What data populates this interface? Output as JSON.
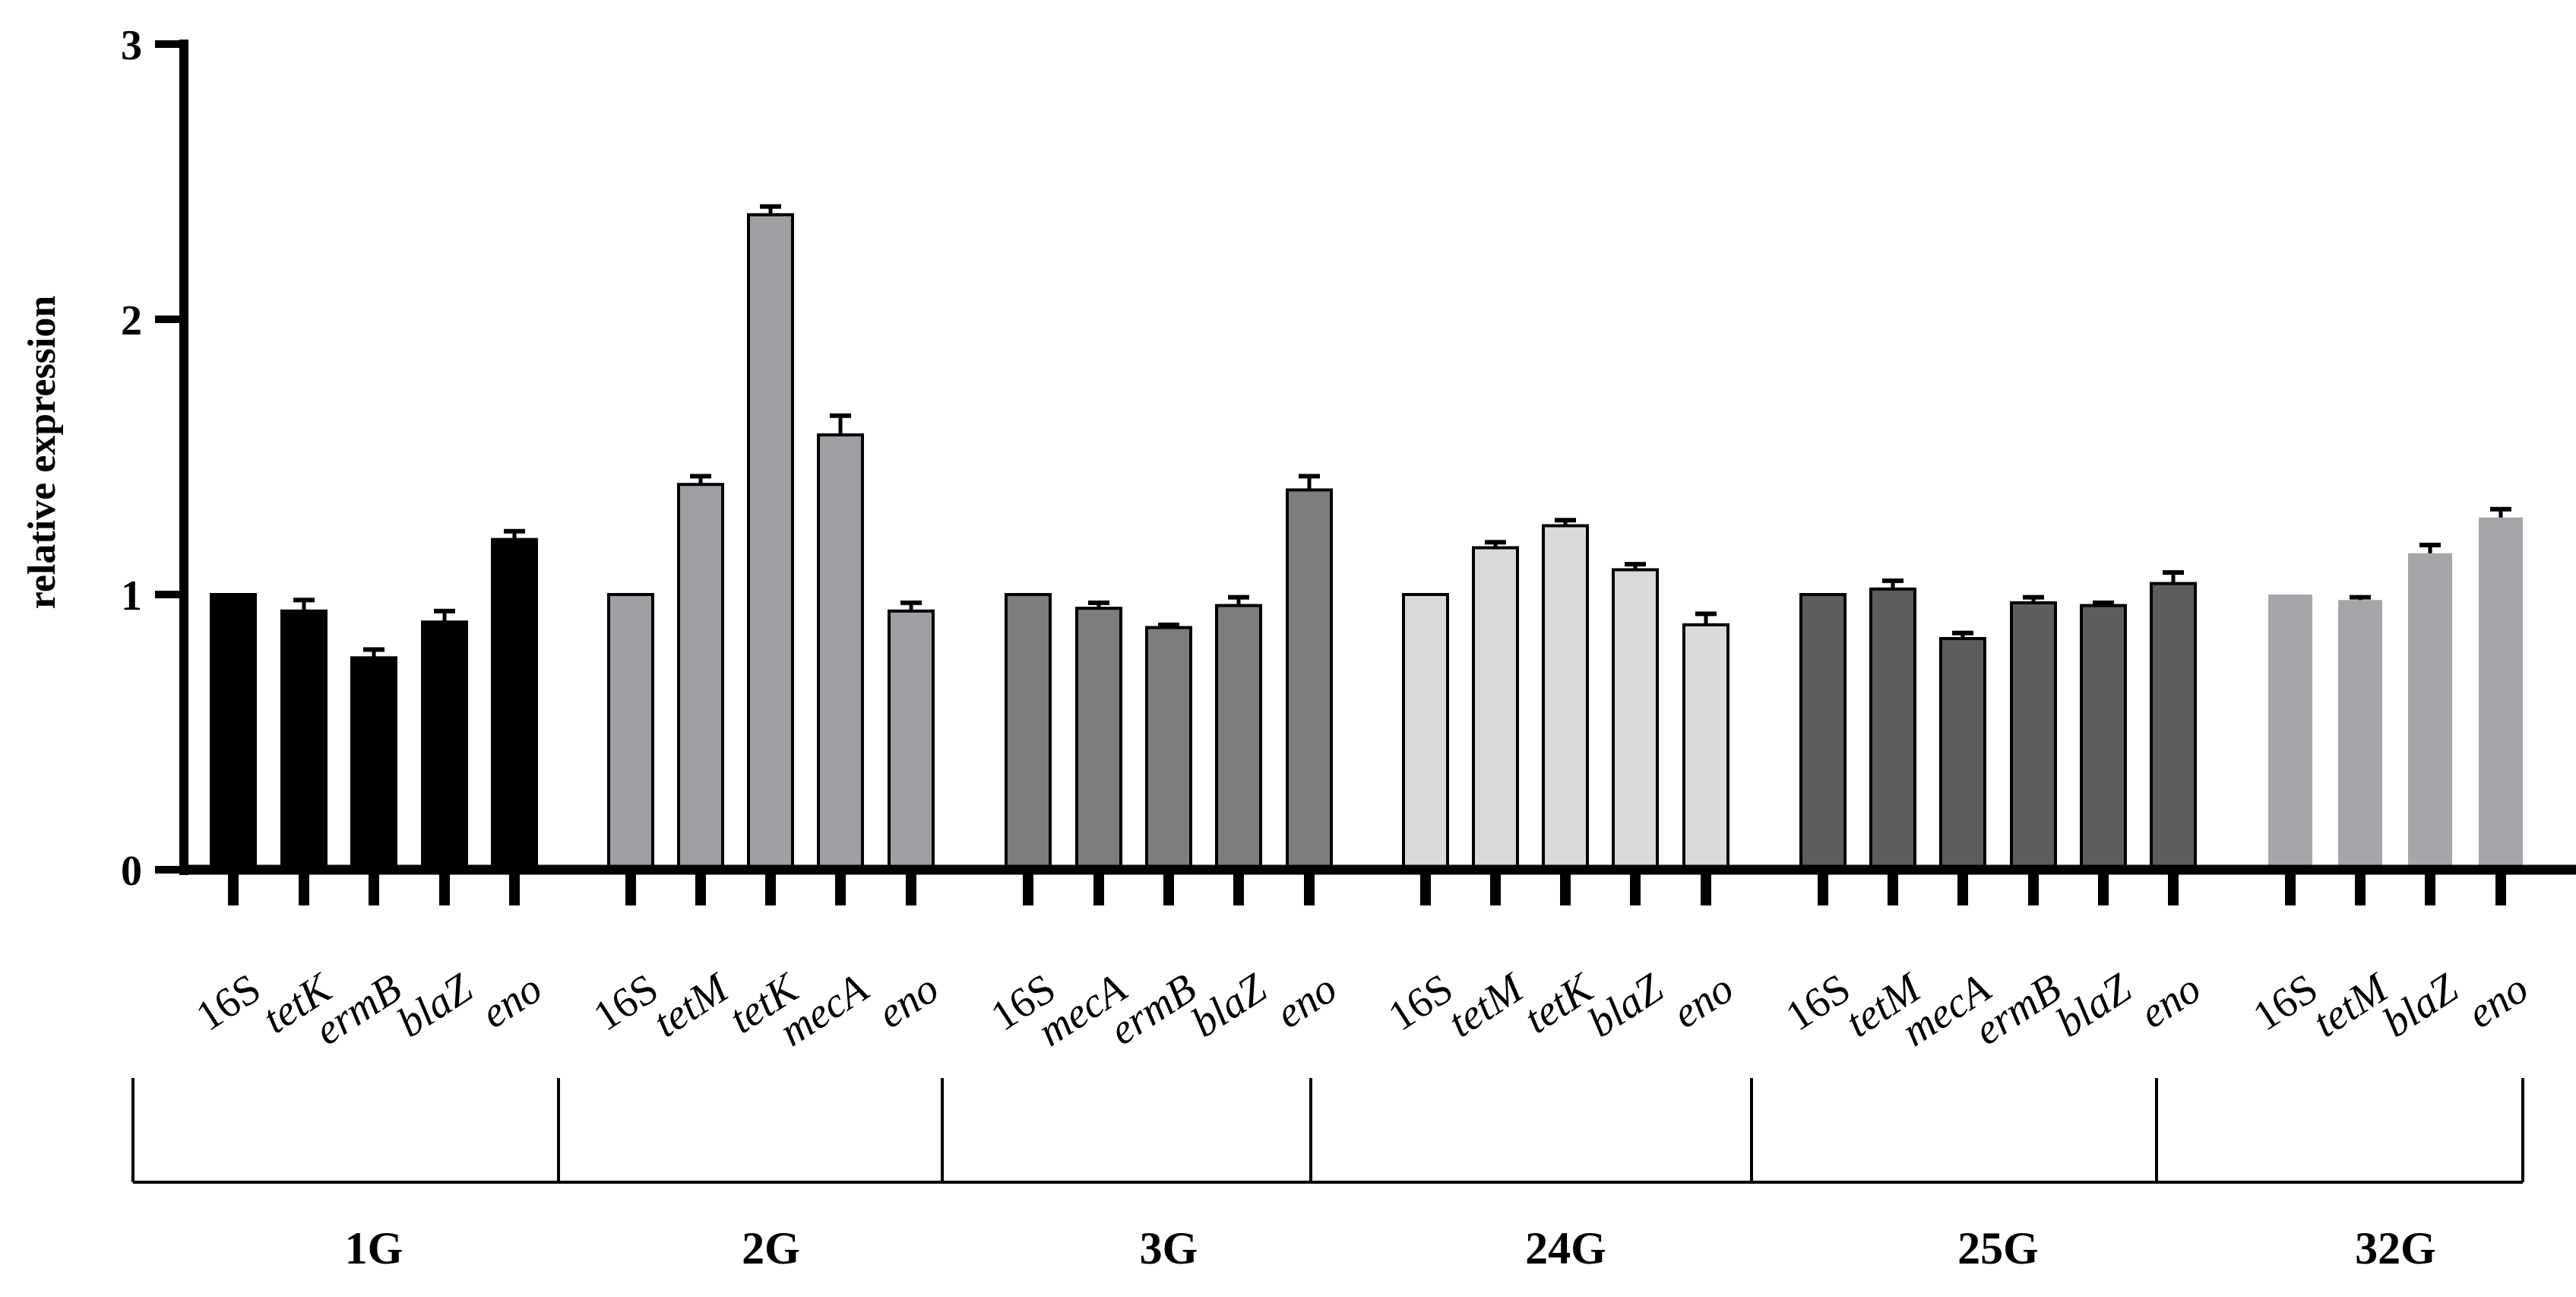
{
  "chart_data": {
    "type": "bar",
    "ylabel": "relative expression",
    "xlabel": "",
    "ylim": [
      0,
      3
    ],
    "yticks": [
      "0",
      "1",
      "2",
      "3"
    ],
    "grid": false,
    "legend": "none",
    "groups": [
      {
        "name": "1G",
        "color": "#000000",
        "bars": [
          {
            "label": "16S",
            "italic": false,
            "value": 1.0,
            "error": 0
          },
          {
            "label": "tetK",
            "italic": true,
            "value": 0.94,
            "error": 0.04
          },
          {
            "label": "ermB",
            "italic": true,
            "value": 0.77,
            "error": 0.03
          },
          {
            "label": "blaZ",
            "italic": true,
            "value": 0.9,
            "error": 0.04
          },
          {
            "label": "eno",
            "italic": true,
            "value": 1.2,
            "error": 0.03
          }
        ]
      },
      {
        "name": "2G",
        "color": "#9e9fa2",
        "bars": [
          {
            "label": "16S",
            "italic": false,
            "value": 1.0,
            "error": 0
          },
          {
            "label": "tetM",
            "italic": true,
            "value": 1.4,
            "error": 0.03
          },
          {
            "label": "tetK",
            "italic": true,
            "value": 2.38,
            "error": 0.03
          },
          {
            "label": "mecA",
            "italic": true,
            "value": 1.58,
            "error": 0.07
          },
          {
            "label": "eno",
            "italic": true,
            "value": 0.94,
            "error": 0.03
          }
        ]
      },
      {
        "name": "3G",
        "color": "#7d7d7f",
        "bars": [
          {
            "label": "16S",
            "italic": false,
            "value": 1.0,
            "error": 0
          },
          {
            "label": "mecA",
            "italic": true,
            "value": 0.95,
            "error": 0.02
          },
          {
            "label": "ermB",
            "italic": true,
            "value": 0.88,
            "error": 0.01
          },
          {
            "label": "blaZ",
            "italic": true,
            "value": 0.96,
            "error": 0.03
          },
          {
            "label": "eno",
            "italic": true,
            "value": 1.38,
            "error": 0.05
          }
        ]
      },
      {
        "name": "24G",
        "color": "#d9d9d9",
        "bars": [
          {
            "label": "16S",
            "italic": false,
            "value": 1.0,
            "error": 0
          },
          {
            "label": "tetM",
            "italic": true,
            "value": 1.17,
            "error": 0.02
          },
          {
            "label": "tetK",
            "italic": true,
            "value": 1.25,
            "error": 0.02
          },
          {
            "label": "blaZ",
            "italic": true,
            "value": 1.09,
            "error": 0.02
          },
          {
            "label": "eno",
            "italic": true,
            "value": 0.89,
            "error": 0.04
          }
        ]
      },
      {
        "name": "25G",
        "color": "#5c5d5f",
        "bars": [
          {
            "label": "16S",
            "italic": false,
            "value": 1.0,
            "error": 0
          },
          {
            "label": "tetM",
            "italic": true,
            "value": 1.02,
            "error": 0.03
          },
          {
            "label": "mecA",
            "italic": true,
            "value": 0.84,
            "error": 0.02
          },
          {
            "label": "ermB",
            "italic": true,
            "value": 0.97,
            "error": 0.02
          },
          {
            "label": "blaZ",
            "italic": true,
            "value": 0.96,
            "error": 0.01
          },
          {
            "label": "eno",
            "italic": true,
            "value": 1.04,
            "error": 0.04
          }
        ]
      },
      {
        "name": "32G",
        "color": "#a5a6a9",
        "bars": [
          {
            "label": "16S",
            "italic": false,
            "value": 1.0,
            "error": 0
          },
          {
            "label": "tetM",
            "italic": true,
            "value": 0.98,
            "error": 0.01
          },
          {
            "label": "blaZ",
            "italic": true,
            "value": 1.15,
            "error": 0.03
          },
          {
            "label": "eno",
            "italic": true,
            "value": 1.28,
            "error": 0.03
          }
        ]
      }
    ]
  }
}
